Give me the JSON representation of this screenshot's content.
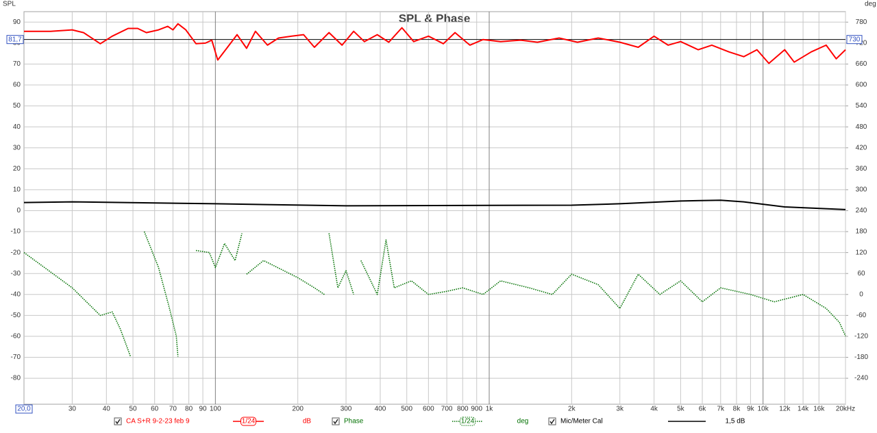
{
  "chart_data": {
    "type": "line",
    "title": "SPL & Phase",
    "ylabel": "SPL",
    "y2label": "deg",
    "log_x": true,
    "grid": true,
    "xlim": [
      20,
      20000
    ],
    "ylim": [
      -92.4,
      95
    ],
    "y2lim": [
      -314.4,
      810
    ],
    "xticks": [
      30,
      40,
      50,
      60,
      70,
      80,
      90,
      100,
      200,
      300,
      400,
      500,
      600,
      700,
      800,
      900,
      {
        "value": 1000,
        "label": "1k"
      },
      {
        "value": 2000,
        "label": "2k"
      },
      {
        "value": 3000,
        "label": "3k"
      },
      {
        "value": 4000,
        "label": "4k"
      },
      {
        "value": 5000,
        "label": "5k"
      },
      {
        "value": 6000,
        "label": "6k"
      },
      {
        "value": 7000,
        "label": "7k"
      },
      {
        "value": 8000,
        "label": "8k"
      },
      {
        "value": 9000,
        "label": "9k"
      },
      {
        "value": 10000,
        "label": "10k"
      },
      {
        "value": 12000,
        "label": "12k"
      },
      {
        "value": 14000,
        "label": "14k"
      },
      {
        "value": 16000,
        "label": "16k"
      },
      {
        "value": 20000,
        "label": "20kHz"
      }
    ],
    "yticks": [
      90,
      80,
      70,
      60,
      50,
      40,
      30,
      20,
      10,
      0,
      -10,
      -20,
      -30,
      -40,
      -50,
      -60,
      -70,
      -80
    ],
    "y2ticks": [
      780,
      720,
      660,
      600,
      540,
      480,
      420,
      360,
      300,
      240,
      180,
      120,
      60,
      0,
      -60,
      -120,
      -180,
      -240
    ],
    "cursor": {
      "y": 81.7,
      "y_label": "81,7",
      "y2_label": "730",
      "x": 20,
      "x_label": "20,0"
    },
    "series": [
      {
        "name": "CA S+R 9-2-23 feb 9",
        "color": "#ff0000",
        "smoothing": "1/24",
        "unit": "dB",
        "x": [
          20,
          25,
          30,
          33,
          38,
          42,
          48,
          52,
          56,
          62,
          67,
          70,
          73,
          78,
          85,
          92,
          97,
          102,
          110,
          120,
          130,
          140,
          155,
          170,
          190,
          210,
          230,
          260,
          290,
          320,
          350,
          390,
          430,
          480,
          530,
          600,
          680,
          750,
          850,
          950,
          1100,
          1300,
          1500,
          1800,
          2100,
          2500,
          3000,
          3500,
          4000,
          4500,
          5000,
          5800,
          6500,
          7500,
          8500,
          9500,
          10500,
          12000,
          13000,
          15000,
          17000,
          18500,
          20000
        ],
        "values": [
          85.6,
          85.6,
          86.3,
          85,
          79.7,
          83.3,
          87,
          87,
          85,
          86.3,
          88,
          86.3,
          89.2,
          86.3,
          79.7,
          80,
          81.4,
          71.9,
          77.5,
          84,
          77.5,
          85.6,
          79,
          82.4,
          83.3,
          84,
          78,
          85,
          79,
          85.6,
          80.7,
          84,
          80.4,
          87.3,
          80.7,
          83.3,
          79.7,
          85,
          79,
          81.7,
          80.7,
          81.4,
          80.4,
          82.4,
          80.4,
          82.4,
          80.4,
          78,
          83.3,
          79,
          80.7,
          76.8,
          79,
          75.8,
          73.5,
          76.8,
          70.3,
          76.8,
          70.9,
          75.8,
          79,
          72.5,
          76.8
        ]
      },
      {
        "name": "Phase",
        "color": "#007000",
        "axis": "y2",
        "smoothing": "1/24",
        "unit": "deg",
        "dotted": true,
        "x": [
          20,
          30,
          38,
          42,
          45,
          49,
          49,
          55,
          62,
          68,
          72,
          73,
          73,
          85,
          95,
          100,
          108,
          118,
          125,
          126,
          130,
          150,
          200,
          230,
          250,
          255,
          260,
          280,
          300,
          320,
          325,
          340,
          390,
          420,
          450,
          520,
          600,
          700,
          800,
          950,
          1100,
          1400,
          1700,
          2000,
          2500,
          3000,
          3500,
          4200,
          5000,
          6000,
          7000,
          9000,
          11000,
          14000,
          17000,
          19000,
          20000
        ],
        "values": [
          120,
          19,
          -60,
          -50,
          -100,
          -178,
          null,
          180,
          77,
          -40,
          -119,
          -178,
          null,
          126,
          120,
          77,
          146,
          97,
          175,
          null,
          58,
          97,
          48,
          19,
          0,
          null,
          175,
          19,
          68,
          0,
          null,
          97,
          0,
          156,
          19,
          39,
          0,
          9,
          19,
          0,
          39,
          19,
          0,
          58,
          28,
          -40,
          58,
          0,
          39,
          -21,
          19,
          0,
          -21,
          0,
          -40,
          -80,
          -119
        ]
      },
      {
        "name": "Mic/Meter Cal",
        "color": "#000000",
        "unit": "1,5 dB",
        "x": [
          20,
          30,
          100,
          300,
          1000,
          2000,
          3000,
          5000,
          7000,
          8500,
          12000,
          20000
        ],
        "values": [
          3.9,
          4.2,
          3.3,
          2.3,
          2.5,
          2.6,
          3.3,
          4.6,
          5,
          4.2,
          1.8,
          0.5
        ]
      }
    ]
  }
}
